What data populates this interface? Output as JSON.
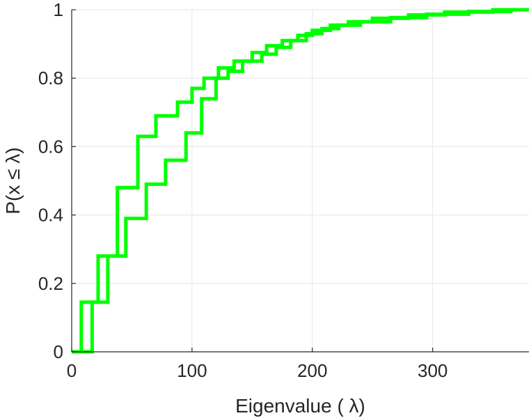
{
  "chart_data": {
    "type": "line",
    "title": "",
    "xlabel": "Eigenvalue (   λ)",
    "ylabel": "P(x  ≤  λ)",
    "xlim": [
      0,
      380
    ],
    "ylim": [
      0,
      1
    ],
    "x_ticks": [
      "0",
      "100",
      "200",
      "300"
    ],
    "y_ticks": [
      "0",
      "0.2",
      "0.4",
      "0.6",
      "0.8",
      "1"
    ],
    "grid": true,
    "color": "#00ff00",
    "series": [
      {
        "x": [
          0,
          8,
          8,
          22,
          22,
          38,
          38,
          55,
          55,
          70,
          70,
          88,
          88,
          100,
          100,
          110,
          110,
          122,
          122,
          135,
          135,
          150,
          150,
          162,
          162,
          175,
          175,
          188,
          188,
          200,
          200,
          215,
          215,
          230,
          230,
          250,
          250,
          280,
          280,
          310,
          310,
          350,
          350,
          380
        ],
        "y": [
          0,
          0,
          0.145,
          0.145,
          0.28,
          0.28,
          0.48,
          0.48,
          0.63,
          0.63,
          0.69,
          0.69,
          0.73,
          0.73,
          0.77,
          0.77,
          0.8,
          0.8,
          0.83,
          0.83,
          0.85,
          0.85,
          0.875,
          0.875,
          0.895,
          0.895,
          0.91,
          0.91,
          0.925,
          0.925,
          0.94,
          0.94,
          0.955,
          0.955,
          0.965,
          0.965,
          0.975,
          0.975,
          0.985,
          0.985,
          0.993,
          0.993,
          1.0,
          1.0
        ]
      },
      {
        "x": [
          0,
          17,
          17,
          30,
          30,
          45,
          45,
          62,
          62,
          78,
          78,
          95,
          95,
          108,
          108,
          120,
          120,
          130,
          130,
          142,
          142,
          158,
          158,
          170,
          170,
          182,
          182,
          195,
          195,
          208,
          208,
          222,
          222,
          240,
          240,
          265,
          265,
          295,
          295,
          330,
          330,
          365,
          365,
          380
        ],
        "y": [
          0,
          0,
          0.145,
          0.145,
          0.28,
          0.28,
          0.39,
          0.39,
          0.49,
          0.49,
          0.56,
          0.56,
          0.64,
          0.64,
          0.74,
          0.74,
          0.8,
          0.8,
          0.82,
          0.82,
          0.85,
          0.85,
          0.87,
          0.87,
          0.89,
          0.89,
          0.91,
          0.91,
          0.93,
          0.93,
          0.945,
          0.945,
          0.955,
          0.955,
          0.965,
          0.965,
          0.977,
          0.977,
          0.987,
          0.987,
          0.995,
          0.995,
          1.0,
          1.0
        ]
      }
    ]
  }
}
